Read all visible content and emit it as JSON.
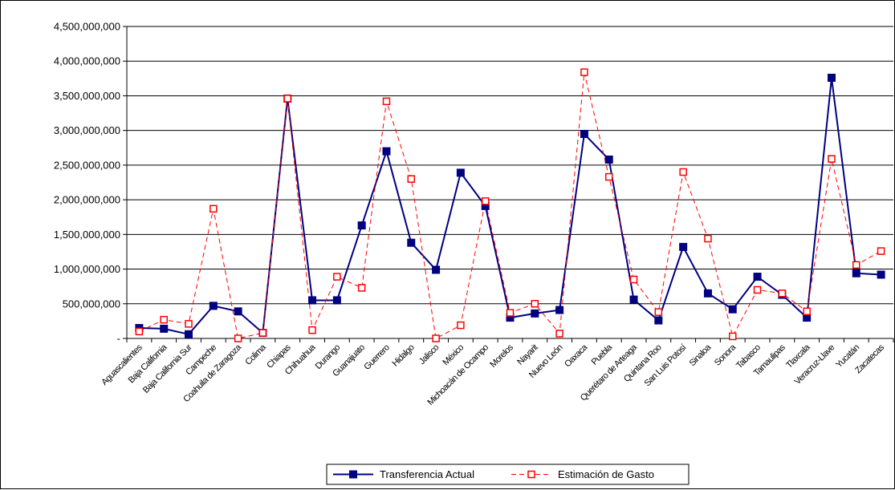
{
  "chart_data": {
    "type": "line",
    "title": "",
    "xlabel": "",
    "ylabel": "",
    "ylim": [
      0,
      4500000000
    ],
    "yticks": [
      0,
      500000000,
      1000000000,
      1500000000,
      2000000000,
      2500000000,
      3000000000,
      3500000000,
      4000000000,
      4500000000
    ],
    "ytick_labels": [
      "-",
      "500,000,000",
      "1,000,000,000",
      "1,500,000,000",
      "2,000,000,000",
      "2,500,000,000",
      "3,000,000,000",
      "3,500,000,000",
      "4,000,000,000",
      "4,500,000,000"
    ],
    "grid": true,
    "legend_position": "bottom",
    "categories": [
      "Aguascalientes",
      "Baja California",
      "Baja California Sur",
      "Campeche",
      "Coahuila de Zaragoza",
      "Colima",
      "Chiapas",
      "Chihuahua",
      "Durango",
      "Guanajuato",
      "Guerrero",
      "Hidalgo",
      "Jalisco",
      "México",
      "Michoacán de Ocampo",
      "Morelos",
      "Nayarit",
      "Nuevo León",
      "Oaxaca",
      "Puebla",
      "Querétaro de Arteaga",
      "Quintana Roo",
      "San Luis Potosí",
      "Sinaloa",
      "Sonora",
      "Tabasco",
      "Tamaulipas",
      "Tlaxcala",
      "Veracruz-Llave",
      "Yucatán",
      "Zacatecas"
    ],
    "series": [
      {
        "name": "Transferencia Actual",
        "color": "#000080",
        "style": "solid",
        "marker": "square-filled",
        "values": [
          150000000,
          140000000,
          60000000,
          470000000,
          390000000,
          80000000,
          3460000000,
          550000000,
          550000000,
          1630000000,
          2700000000,
          1380000000,
          990000000,
          2390000000,
          1910000000,
          300000000,
          360000000,
          410000000,
          2950000000,
          2580000000,
          560000000,
          260000000,
          1320000000,
          650000000,
          420000000,
          890000000,
          630000000,
          300000000,
          3760000000,
          940000000,
          920000000
        ]
      },
      {
        "name": "Estimación de Gasto",
        "color": "#ff0000",
        "style": "dashed",
        "marker": "square-open",
        "values": [
          100000000,
          270000000,
          210000000,
          1870000000,
          0,
          80000000,
          3460000000,
          120000000,
          890000000,
          730000000,
          3420000000,
          2300000000,
          0,
          190000000,
          1980000000,
          370000000,
          500000000,
          70000000,
          3840000000,
          2330000000,
          850000000,
          380000000,
          2400000000,
          1440000000,
          30000000,
          700000000,
          650000000,
          390000000,
          2590000000,
          1060000000,
          1260000000
        ]
      }
    ]
  }
}
